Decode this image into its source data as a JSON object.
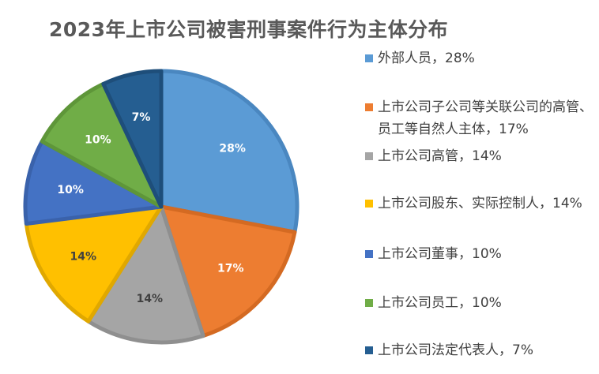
{
  "chart_data": {
    "type": "pie",
    "title": "2023年上市公司被害刑事案件行为主体分布",
    "legend_position": "right",
    "slices": [
      {
        "name": "外部人员",
        "value": 28,
        "data_label": "28%",
        "legend_label": "外部人员，28%",
        "color": "#5B9BD5",
        "border": "#4A87C0",
        "label_color": "#ffffff"
      },
      {
        "name": "上市公司子公司等关联公司的高管、员工等自然人主体",
        "value": 17,
        "data_label": "17%",
        "legend_label": "上市公司子公司等关联公司的高管、员工等自然人主体，17%",
        "color": "#ED7D31",
        "border": "#D46A22",
        "label_color": "#ffffff"
      },
      {
        "name": "上市公司高管",
        "value": 14,
        "data_label": "14%",
        "legend_label": "上市公司高管，14%",
        "color": "#A5A5A5",
        "border": "#8F8F8F",
        "label_color": "#404040"
      },
      {
        "name": "上市公司股东、实际控制人",
        "value": 14,
        "data_label": "14%",
        "legend_label": "上市公司股东、实际控制人，14%",
        "color": "#FFC000",
        "border": "#E0A800",
        "label_color": "#404040"
      },
      {
        "name": "上市公司董事",
        "value": 10,
        "data_label": "10%",
        "legend_label": "上市公司董事，10%",
        "color": "#4472C4",
        "border": "#3A62AB",
        "label_color": "#ffffff"
      },
      {
        "name": "上市公司员工",
        "value": 10,
        "data_label": "10%",
        "legend_label": "上市公司员工，10%",
        "color": "#70AD47",
        "border": "#5E9639",
        "label_color": "#ffffff"
      },
      {
        "name": "上市公司法定代表人",
        "value": 7,
        "data_label": "7%",
        "legend_label": "上市公司法定代表人，7%",
        "color": "#255E91",
        "border": "#1E4E7A",
        "label_color": "#ffffff"
      }
    ]
  }
}
